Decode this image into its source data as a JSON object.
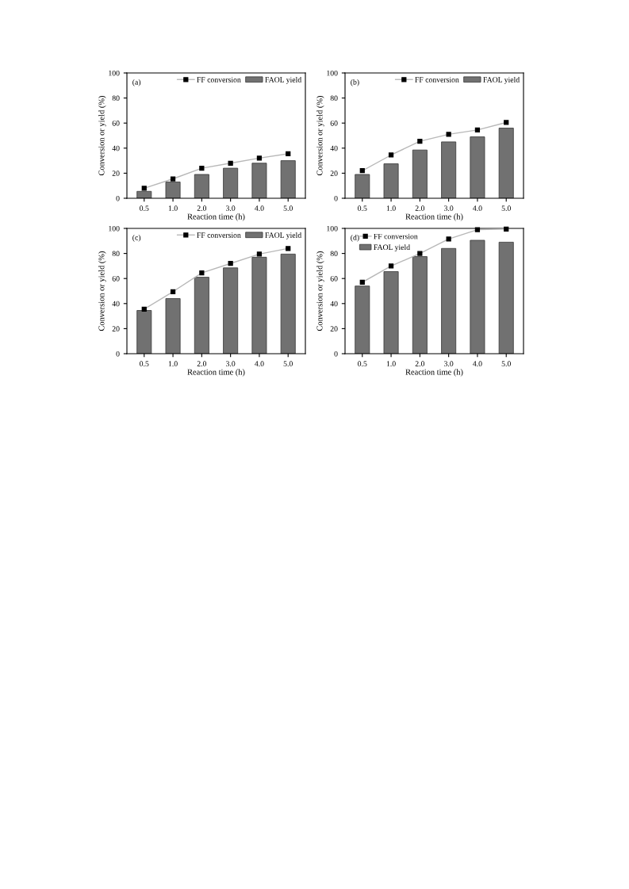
{
  "chart_data": [
    {
      "type": "bar",
      "annotations": [
        "(a)"
      ],
      "xlabel": "Reaction time (h)",
      "ylabel": "Conversion or yield (%)",
      "categories": [
        "0.5",
        "1.0",
        "2.0",
        "3.0",
        "4.0",
        "5.0"
      ],
      "ylim": [
        0,
        100
      ],
      "yticks": [
        0,
        20,
        40,
        60,
        80,
        100
      ],
      "legend": "top right",
      "grid": false,
      "series": [
        {
          "name": "FF conversion",
          "type": "line",
          "color": "#b8b8b8",
          "marker": "square",
          "values": [
            8,
            15.5,
            24,
            28,
            32,
            35.5
          ]
        },
        {
          "name": "FAOL yield",
          "color": "#717171",
          "values": [
            5.5,
            13,
            19,
            24,
            28,
            30
          ]
        }
      ]
    },
    {
      "type": "bar",
      "annotations": [
        "(b)"
      ],
      "xlabel": "Reaction time (h)",
      "ylabel": "Conversion or yield (%)",
      "categories": [
        "0.5",
        "1.0",
        "2.0",
        "3.0",
        "4.0",
        "5.0"
      ],
      "ylim": [
        0,
        100
      ],
      "yticks": [
        0,
        20,
        40,
        60,
        80,
        100
      ],
      "legend": "top right",
      "grid": false,
      "series": [
        {
          "name": "FF conversion",
          "type": "line",
          "color": "#b8b8b8",
          "marker": "square",
          "values": [
            22,
            34.5,
            45.5,
            51,
            54.5,
            60.5
          ]
        },
        {
          "name": "FAOL yield",
          "color": "#717171",
          "values": [
            19,
            27.5,
            38.5,
            45,
            49,
            56
          ]
        }
      ]
    },
    {
      "type": "bar",
      "annotations": [
        "(c)"
      ],
      "xlabel": "Reaction time (h)",
      "ylabel": "Conversion or yield (%)",
      "categories": [
        "0.5",
        "1.0",
        "2.0",
        "3.0",
        "4.0",
        "5.0"
      ],
      "ylim": [
        0,
        100
      ],
      "yticks": [
        0,
        20,
        40,
        60,
        80,
        100
      ],
      "legend": "top right",
      "grid": false,
      "series": [
        {
          "name": "FF conversion",
          "type": "line",
          "color": "#b8b8b8",
          "marker": "square",
          "values": [
            35.5,
            49.5,
            64.5,
            72,
            79.5,
            84
          ]
        },
        {
          "name": "FAOL yield",
          "color": "#717171",
          "values": [
            34.5,
            44,
            61,
            68.5,
            77,
            79.5
          ]
        }
      ]
    },
    {
      "type": "bar",
      "annotations": [
        "(d)"
      ],
      "xlabel": "Reaction time (h)",
      "ylabel": "Conversion or yield (%)",
      "categories": [
        "0.5",
        "1.0",
        "2.0",
        "3.0",
        "4.0",
        "5.0"
      ],
      "ylim": [
        0,
        100
      ],
      "yticks": [
        0,
        20,
        40,
        60,
        80,
        100
      ],
      "legend": "top left",
      "grid": false,
      "series": [
        {
          "name": "FF conversion",
          "type": "line",
          "color": "#b8b8b8",
          "marker": "square",
          "values": [
            57,
            70,
            80,
            91.5,
            99,
            99.5
          ]
        },
        {
          "name": "FAOL yield",
          "color": "#717171",
          "values": [
            54,
            65.5,
            77.5,
            84,
            90.5,
            89
          ]
        }
      ]
    }
  ]
}
